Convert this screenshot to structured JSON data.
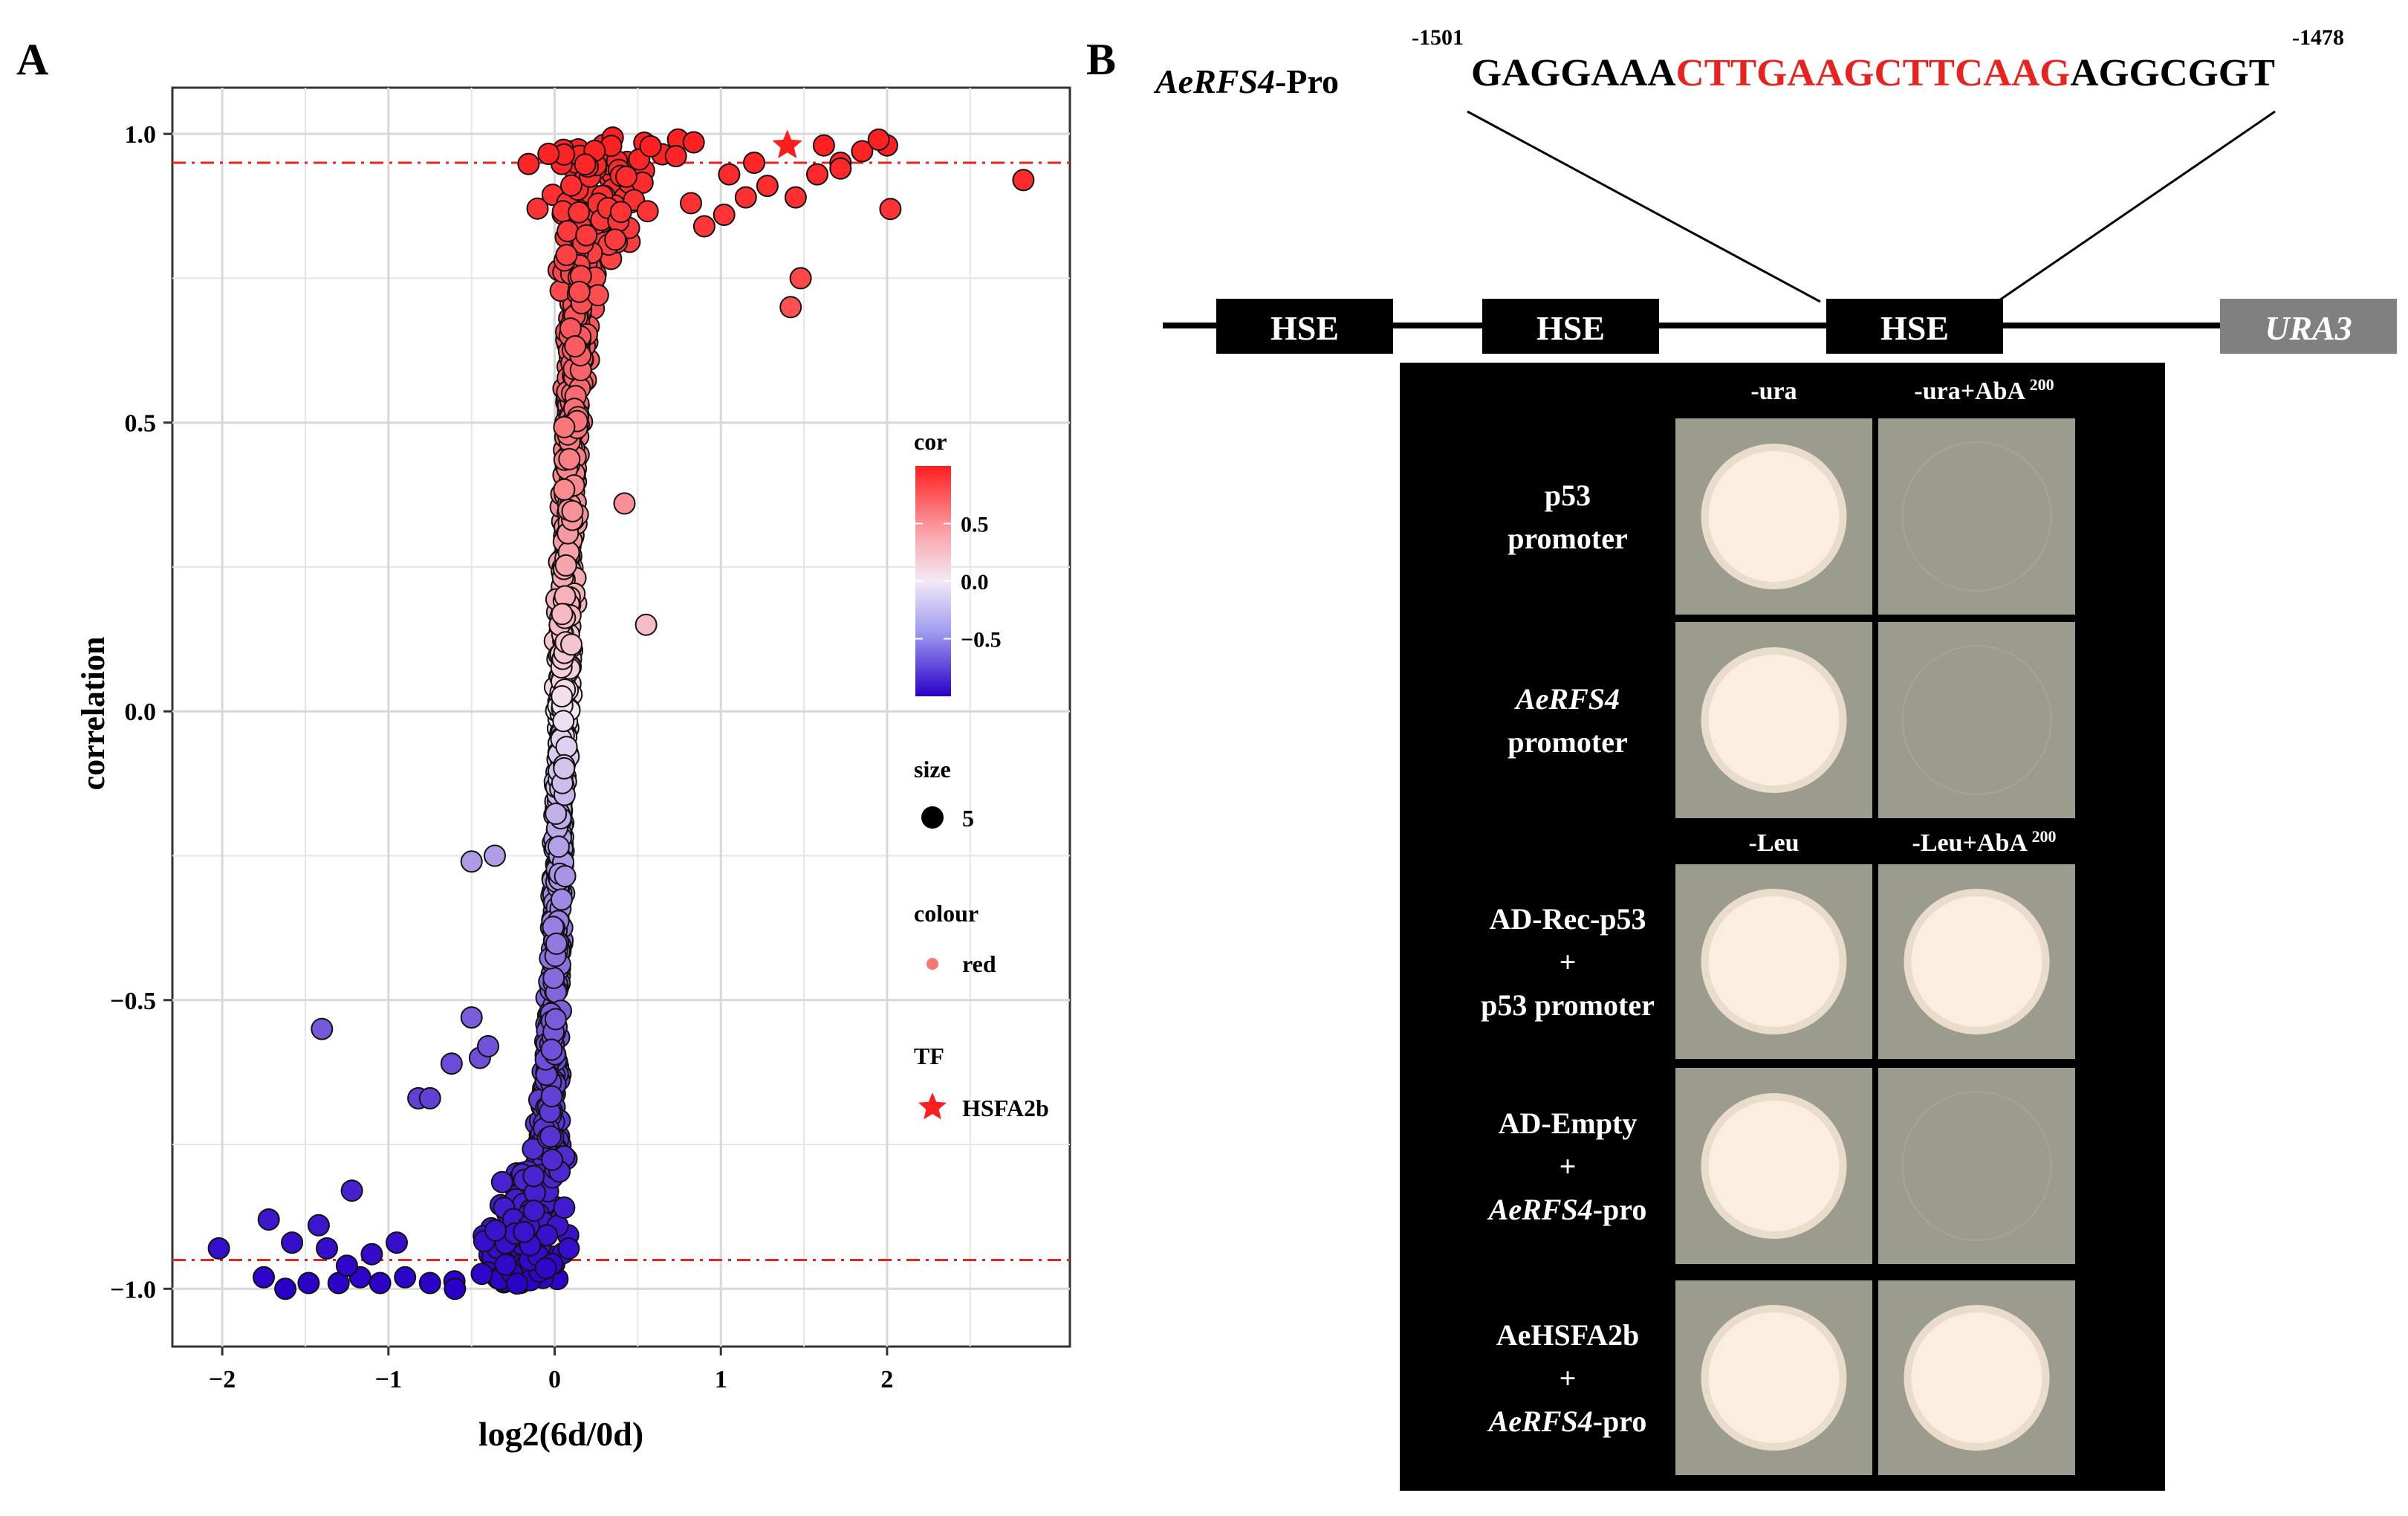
{
  "panel_a": {
    "label": "A",
    "chart_data": {
      "type": "scatter",
      "xlabel": "log2(6d/0d)",
      "ylabel": "correlation",
      "xlim": [
        -2.3,
        3.1
      ],
      "ylim": [
        -1.1,
        1.08
      ],
      "x_ticks": [
        {
          "v": -2,
          "t": "−2"
        },
        {
          "v": -1,
          "t": "−1"
        },
        {
          "v": 0,
          "t": "0"
        },
        {
          "v": 1,
          "t": "1"
        },
        {
          "v": 2,
          "t": "2"
        }
      ],
      "y_ticks": [
        {
          "v": 1,
          "t": "1.0"
        },
        {
          "v": 0.5,
          "t": "0.5"
        },
        {
          "v": 0,
          "t": "0.0"
        },
        {
          "v": -0.5,
          "t": "−0.5"
        },
        {
          "v": -1,
          "t": "−1.0"
        }
      ],
      "grid": true,
      "hlines": [
        0.95,
        -0.95
      ],
      "hline_color": "#e8231f",
      "background": "#ffffff",
      "gridline_color": "#e6e6e6",
      "color_scale": {
        "low": "#2a00c8",
        "mid": "#f3e9f5",
        "high": "#ff1e1e",
        "low_value": -1,
        "high_value": 1
      },
      "outliers": [
        [
          -2.02,
          -0.93
        ],
        [
          -1.75,
          -0.98
        ],
        [
          -1.62,
          -1.0
        ],
        [
          -1.48,
          -0.99
        ],
        [
          -1.3,
          -0.99
        ],
        [
          -1.17,
          -0.98
        ],
        [
          -1.05,
          -0.99
        ],
        [
          -0.9,
          -0.98
        ],
        [
          -0.75,
          -0.99
        ],
        [
          -0.6,
          -1.0
        ],
        [
          -1.72,
          -0.88
        ],
        [
          -1.58,
          -0.92
        ],
        [
          -1.42,
          -0.89
        ],
        [
          -1.25,
          -0.96
        ],
        [
          -1.1,
          -0.94
        ],
        [
          -0.95,
          -0.92
        ],
        [
          -1.4,
          -0.55
        ],
        [
          -1.22,
          -0.83
        ],
        [
          -1.37,
          -0.93
        ],
        [
          -0.82,
          -0.67
        ],
        [
          -0.75,
          -0.67
        ],
        [
          -0.62,
          -0.61
        ],
        [
          -0.5,
          -0.26
        ],
        [
          -0.36,
          -0.25
        ],
        [
          -0.5,
          -0.53
        ],
        [
          -0.45,
          -0.6
        ],
        [
          -0.4,
          -0.58
        ],
        [
          0.42,
          0.36
        ],
        [
          0.55,
          0.15
        ],
        [
          0.9,
          0.84
        ],
        [
          0.82,
          0.88
        ],
        [
          1.02,
          0.86
        ],
        [
          1.15,
          0.89
        ],
        [
          1.28,
          0.91
        ],
        [
          1.45,
          0.89
        ],
        [
          1.58,
          0.93
        ],
        [
          1.72,
          0.95
        ],
        [
          1.85,
          0.97
        ],
        [
          2.0,
          0.98
        ],
        [
          2.02,
          0.87
        ],
        [
          1.42,
          0.7
        ],
        [
          1.48,
          0.75
        ],
        [
          1.72,
          0.94
        ],
        [
          2.82,
          0.92
        ],
        [
          1.05,
          0.93
        ],
        [
          1.2,
          0.95
        ],
        [
          1.62,
          0.98
        ],
        [
          1.95,
          0.99
        ]
      ],
      "highlight_point": [
        1.4,
        0.98
      ],
      "legend": {
        "placement": "right",
        "cor_title": "cor",
        "cor_ticks": [
          {
            "v": 0.5,
            "t": "0.5"
          },
          {
            "v": 0,
            "t": "0.0"
          },
          {
            "v": -0.5,
            "t": "−0.5"
          }
        ],
        "size_title": "size",
        "size_label": "5",
        "colour_title": "colour",
        "colour_label": "red",
        "colour_swatch": "#f8766d",
        "tf_title": "TF",
        "tf_label": "HSFA2b"
      }
    }
  },
  "panel_b": {
    "label": "B",
    "promoter_name": "AeRFS4",
    "promoter_suffix": "-Pro",
    "seq_start": "-1501",
    "seq_end": "-1478",
    "seq_left": "GAGGAAA",
    "seq_core": "CTTGAAGCTTCAAG",
    "seq_right": "AGGCGGT",
    "core_color": "#e8231f",
    "elements": [
      "HSE",
      "HSE",
      "HSE"
    ],
    "reporter": "URA3",
    "reporter_color": "#808080",
    "plate_bg": "#9c9c8e",
    "colony_color": "#faeee0",
    "columns_top": [
      "-ura",
      "-ura+AbA"
    ],
    "columns_bottom": [
      "-Leu",
      "-Leu+AbA"
    ],
    "aba_sup": "200",
    "rows": [
      {
        "lines": [
          {
            "t": "p53",
            "i": false
          },
          {
            "t": "promoter",
            "i": false
          }
        ],
        "growth": [
          true,
          false
        ]
      },
      {
        "lines": [
          {
            "t": "AeRFS4",
            "i": true
          },
          {
            "t": "promoter",
            "i": false
          }
        ],
        "growth": [
          true,
          false
        ]
      },
      {
        "lines": [
          {
            "t": "AD-Rec-p53",
            "i": false
          },
          {
            "t": "+",
            "i": false
          },
          {
            "t": "p53 promoter",
            "i": false
          }
        ],
        "growth": [
          true,
          true
        ]
      },
      {
        "lines": [
          {
            "t": "AD-Empty",
            "i": false
          },
          {
            "t": "+",
            "i": false
          },
          {
            "t": "AeRFS4",
            "i": true,
            "suffix": "-pro"
          }
        ],
        "growth": [
          true,
          false
        ]
      },
      {
        "lines": [
          {
            "t": "AeHSFA2b",
            "i": false
          },
          {
            "t": "+",
            "i": false
          },
          {
            "t": "AeRFS4",
            "i": true,
            "suffix": "-pro"
          }
        ],
        "growth": [
          true,
          true
        ]
      }
    ]
  }
}
